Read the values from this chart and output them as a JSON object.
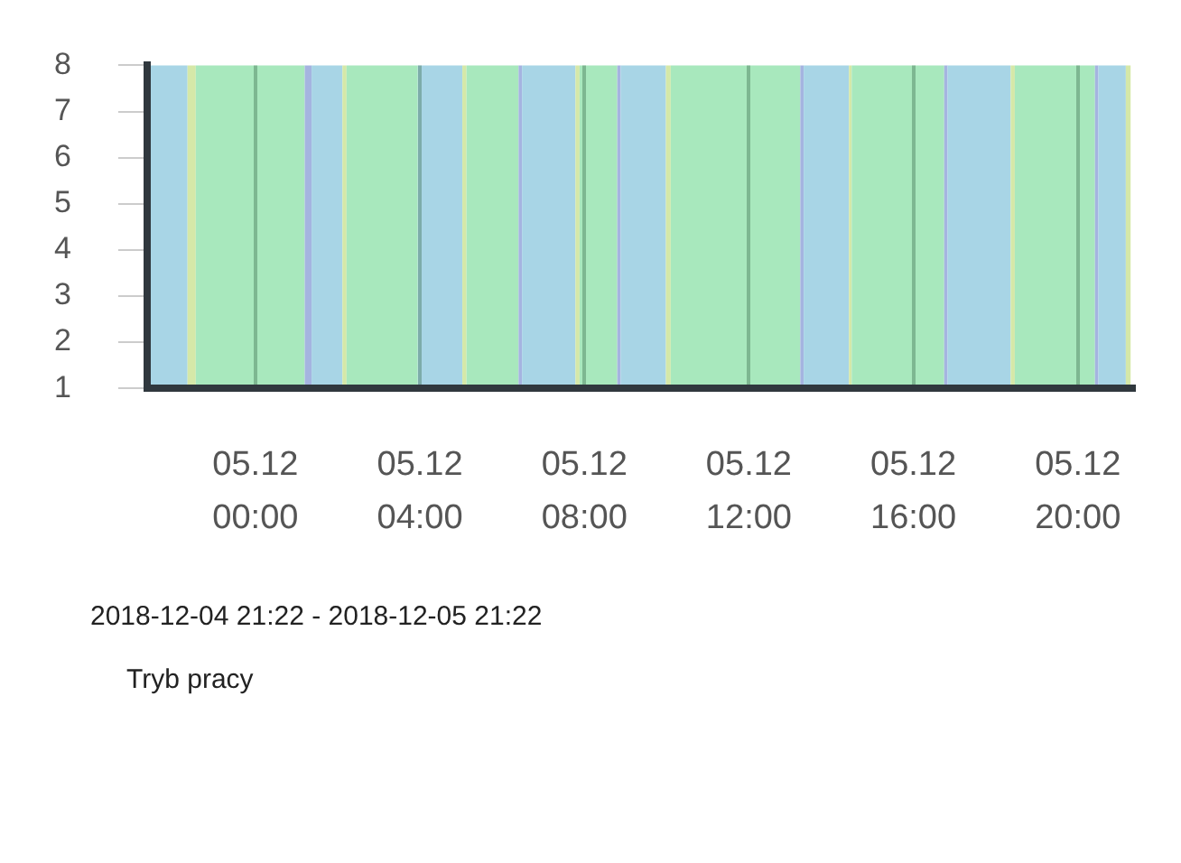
{
  "chart_data": {
    "type": "line",
    "title": "Tryb pracy",
    "subtitle": "2018-12-04 21:22 - 2018-12-05 21:22",
    "xlim": [
      "2018-12-04T21:22",
      "2018-12-05T21:22"
    ],
    "xticks": [
      {
        "value": "2018-12-05T00:00",
        "label": "05.12 00:00"
      },
      {
        "value": "2018-12-05T04:00",
        "label": "05.12 04:00"
      },
      {
        "value": "2018-12-05T08:00",
        "label": "05.12 08:00"
      },
      {
        "value": "2018-12-05T12:00",
        "label": "05.12 12:00"
      },
      {
        "value": "2018-12-05T16:00",
        "label": "05.12 16:00"
      },
      {
        "value": "2018-12-05T20:00",
        "label": "05.12 20:00"
      }
    ],
    "ylim": [
      1,
      8
    ],
    "yticks": [
      1,
      2,
      3,
      4,
      5,
      6,
      7,
      8
    ],
    "grid": "x",
    "bands": [
      {
        "axis": "x",
        "from": "2018-12-04T21:22",
        "to": "2018-12-04T22:21",
        "color": "#a8d5e6"
      },
      {
        "axis": "x",
        "from": "2018-12-04T22:21",
        "to": "2018-12-04T22:33",
        "color": "#d5e8a8"
      },
      {
        "axis": "x",
        "from": "2018-12-04T22:33",
        "to": "2018-12-05T01:12",
        "color": "#a8e8bd"
      },
      {
        "axis": "x",
        "from": "2018-12-05T01:12",
        "to": "2018-12-05T01:22",
        "color": "#a5b4e0"
      },
      {
        "axis": "x",
        "from": "2018-12-05T01:22",
        "to": "2018-12-05T02:07",
        "color": "#a8d5e6"
      },
      {
        "axis": "x",
        "from": "2018-12-05T02:07",
        "to": "2018-12-05T02:13",
        "color": "#d5e8a8"
      },
      {
        "axis": "x",
        "from": "2018-12-05T02:13",
        "to": "2018-12-05T03:57",
        "color": "#a8e8bd"
      },
      {
        "axis": "x",
        "from": "2018-12-05T03:57",
        "to": "2018-12-05T05:02",
        "color": "#a8d5e6"
      },
      {
        "axis": "x",
        "from": "2018-12-05T05:02",
        "to": "2018-12-05T05:08",
        "color": "#d5e8a8"
      },
      {
        "axis": "x",
        "from": "2018-12-05T05:08",
        "to": "2018-12-05T06:24",
        "color": "#a8e8bd"
      },
      {
        "axis": "x",
        "from": "2018-12-05T06:24",
        "to": "2018-12-05T06:29",
        "color": "#a5b4e0"
      },
      {
        "axis": "x",
        "from": "2018-12-05T06:29",
        "to": "2018-12-05T07:47",
        "color": "#a8d5e6"
      },
      {
        "axis": "x",
        "from": "2018-12-05T07:47",
        "to": "2018-12-05T07:53",
        "color": "#d5e8a8"
      },
      {
        "axis": "x",
        "from": "2018-12-05T07:53",
        "to": "2018-12-05T08:48",
        "color": "#a8e8bd"
      },
      {
        "axis": "x",
        "from": "2018-12-05T08:48",
        "to": "2018-12-05T08:53",
        "color": "#a5b4e0"
      },
      {
        "axis": "x",
        "from": "2018-12-05T08:53",
        "to": "2018-12-05T09:59",
        "color": "#a8d5e6"
      },
      {
        "axis": "x",
        "from": "2018-12-05T09:59",
        "to": "2018-12-05T10:06",
        "color": "#d5e8a8"
      },
      {
        "axis": "x",
        "from": "2018-12-05T10:06",
        "to": "2018-12-05T13:15",
        "color": "#a8e8bd"
      },
      {
        "axis": "x",
        "from": "2018-12-05T13:15",
        "to": "2018-12-05T13:20",
        "color": "#a5b4e0"
      },
      {
        "axis": "x",
        "from": "2018-12-05T13:20",
        "to": "2018-12-05T14:26",
        "color": "#a8d5e6"
      },
      {
        "axis": "x",
        "from": "2018-12-05T14:26",
        "to": "2018-12-05T14:30",
        "color": "#d5e8a8"
      },
      {
        "axis": "x",
        "from": "2018-12-05T14:30",
        "to": "2018-12-05T16:45",
        "color": "#a8e8bd"
      },
      {
        "axis": "x",
        "from": "2018-12-05T16:45",
        "to": "2018-12-05T16:50",
        "color": "#a5b4e0"
      },
      {
        "axis": "x",
        "from": "2018-12-05T16:50",
        "to": "2018-12-05T18:22",
        "color": "#a8d5e6"
      },
      {
        "axis": "x",
        "from": "2018-12-05T18:22",
        "to": "2018-12-05T18:28",
        "color": "#d5e8a8"
      },
      {
        "axis": "x",
        "from": "2018-12-05T18:28",
        "to": "2018-12-05T20:25",
        "color": "#a8e8bd"
      },
      {
        "axis": "x",
        "from": "2018-12-05T20:25",
        "to": "2018-12-05T20:30",
        "color": "#a5b4e0"
      },
      {
        "axis": "x",
        "from": "2018-12-05T20:30",
        "to": "2018-12-05T21:10",
        "color": "#a8d5e6"
      },
      {
        "axis": "x",
        "from": "2018-12-05T21:10",
        "to": "2018-12-05T21:17",
        "color": "#d5e8a8"
      }
    ]
  }
}
